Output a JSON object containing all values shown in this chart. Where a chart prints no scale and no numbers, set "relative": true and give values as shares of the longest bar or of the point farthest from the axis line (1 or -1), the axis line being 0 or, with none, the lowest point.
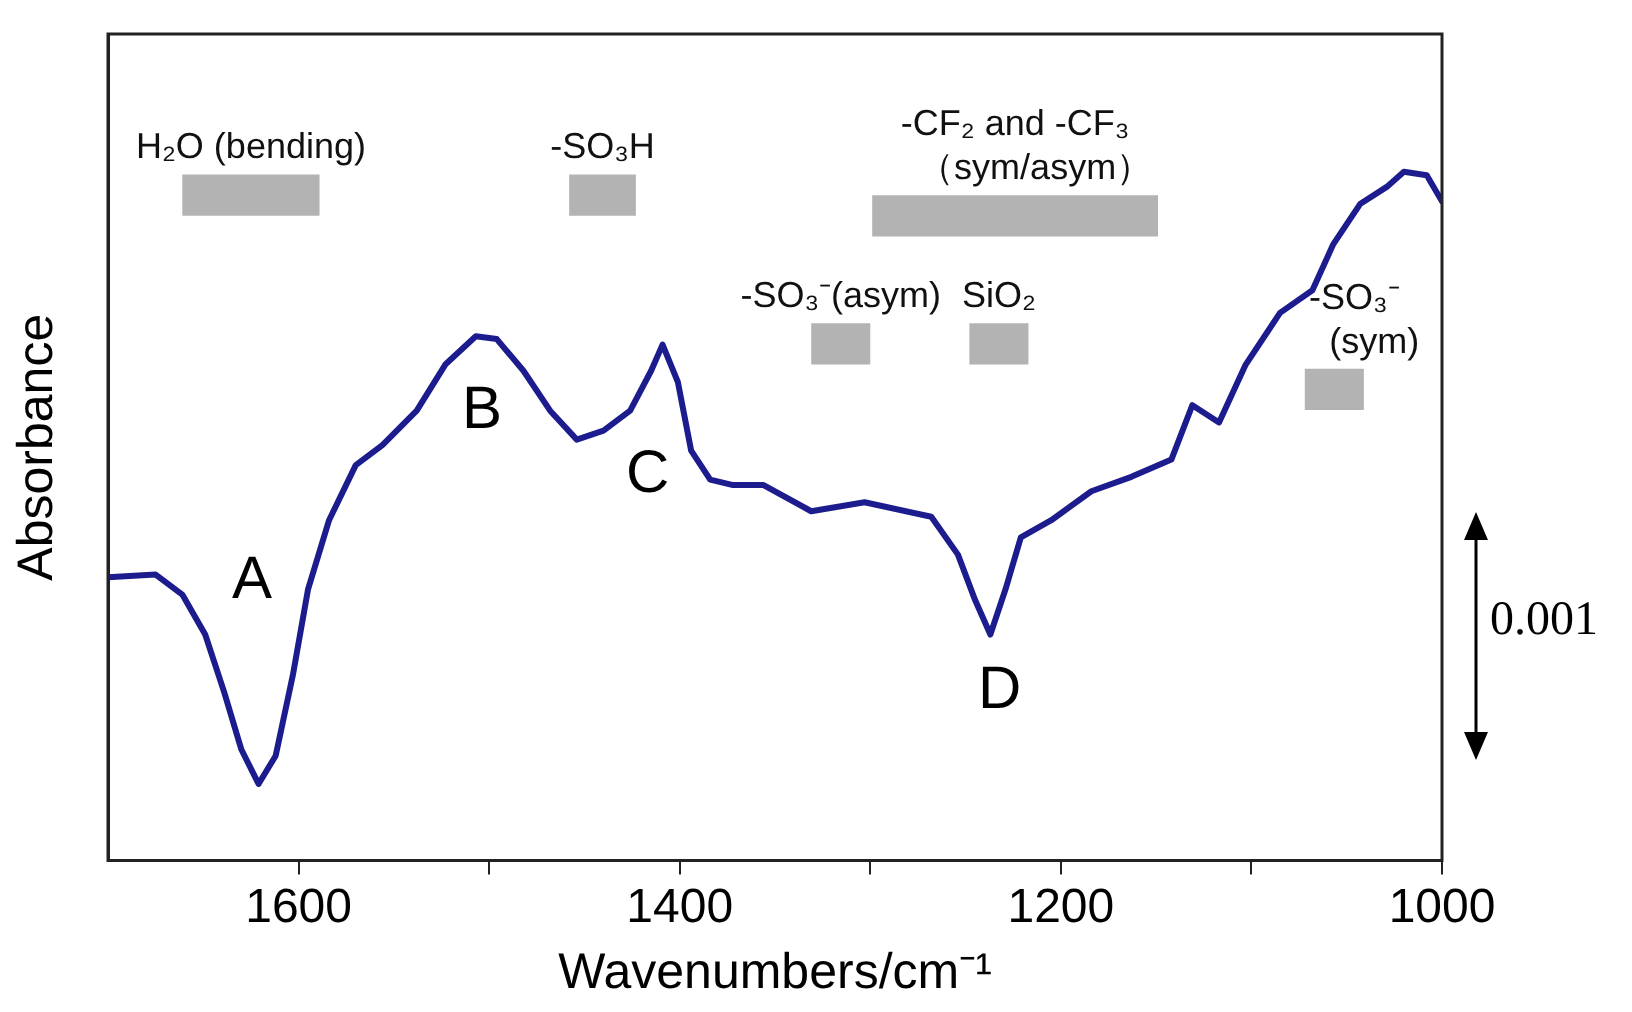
{
  "chart_data": {
    "type": "line",
    "relative": true,
    "xlabel": "Wavenumbers/cm⁻¹",
    "ylabel": "Absorbance",
    "xlim": [
      1700,
      1000
    ],
    "xticks": [
      1600,
      {
        "value": 1500,
        "label": null
      },
      1400,
      {
        "value": 1300,
        "label": null
      },
      1200,
      {
        "value": 1100,
        "label": null
      },
      1000
    ],
    "grid": false,
    "legend": false,
    "marker": "none",
    "line_style": "solid",
    "series": [
      {
        "color": "#1c1c8f",
        "x": [
          1700,
          1675,
          1661,
          1649,
          1639,
          1630,
          1621,
          1612,
          1603,
          1595,
          1584,
          1570,
          1556,
          1538,
          1523,
          1507,
          1496,
          1482,
          1468,
          1454,
          1440,
          1426,
          1415,
          1409,
          1401,
          1394,
          1384,
          1372,
          1356,
          1331,
          1303,
          1268,
          1254,
          1245,
          1237,
          1229,
          1221,
          1205,
          1184,
          1163,
          1142,
          1131,
          1117,
          1103,
          1085,
          1068,
          1057,
          1043,
          1029,
          1020,
          1008,
          1000
        ],
        "values": [
          0.411,
          0.415,
          0.386,
          0.328,
          0.244,
          0.161,
          0.111,
          0.152,
          0.269,
          0.394,
          0.494,
          0.574,
          0.603,
          0.653,
          0.72,
          0.761,
          0.757,
          0.711,
          0.653,
          0.611,
          0.624,
          0.653,
          0.711,
          0.749,
          0.695,
          0.595,
          0.553,
          0.545,
          0.545,
          0.507,
          0.52,
          0.499,
          0.444,
          0.378,
          0.328,
          0.394,
          0.469,
          0.494,
          0.536,
          0.557,
          0.582,
          0.661,
          0.636,
          0.72,
          0.795,
          0.828,
          0.895,
          0.953,
          0.978,
          1,
          0.995,
          0.957
        ]
      }
    ],
    "bands": [
      {
        "axis": "x",
        "from": 1661,
        "to": 1589,
        "label": "H₂O (bending)",
        "color": "#b3b3b3"
      },
      {
        "axis": "x",
        "from": 1458,
        "to": 1423,
        "label": "-SO₃H",
        "color": "#b3b3b3"
      },
      {
        "axis": "x",
        "from": 1299,
        "to": 1149,
        "label": "-CF₂ and -CF₃\n（sym/asym）",
        "color": "#b3b3b3"
      },
      {
        "axis": "x",
        "from": 1331,
        "to": 1300,
        "label": "-SO₃⁻(asym)",
        "color": "#b3b3b3"
      },
      {
        "axis": "x",
        "from": 1248,
        "to": 1217,
        "label": "SiO₂",
        "color": "#b3b3b3"
      },
      {
        "axis": "x",
        "from": 1072,
        "to": 1041,
        "label": "-SO₃⁻\n(sym)",
        "color": "#b3b3b3"
      }
    ],
    "annotations": [
      "A",
      "B",
      "C",
      "D",
      "0.001"
    ]
  }
}
